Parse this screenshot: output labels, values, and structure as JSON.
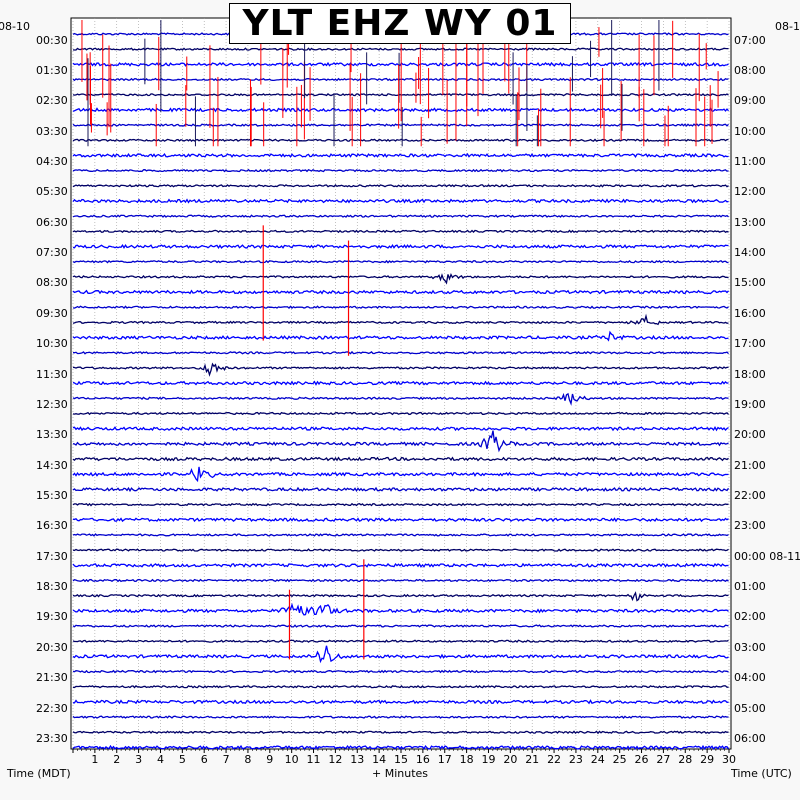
{
  "header": {
    "title": "YLT EHZ WY 01",
    "left_date": "08-10",
    "right_date": "08-1"
  },
  "footer": {
    "left_axis": "Time (MDT)",
    "x_axis": "+ Minutes",
    "right_axis": "Time (UTC)"
  },
  "chart_data": {
    "type": "line",
    "title": "YLT EHZ WY 01",
    "xlabel": "+ Minutes",
    "xlim": [
      0,
      30
    ],
    "x_ticks": [
      "1",
      "2",
      "3",
      "4",
      "5",
      "6",
      "7",
      "8",
      "9",
      "10",
      "11",
      "12",
      "13",
      "14",
      "15",
      "16",
      "17",
      "18",
      "19",
      "20",
      "21",
      "22",
      "23",
      "24",
      "25",
      "26",
      "27",
      "28",
      "29",
      "30"
    ],
    "left_labels": [
      "00:30",
      "01:30",
      "02:30",
      "03:30",
      "04:30",
      "05:30",
      "06:30",
      "07:30",
      "08:30",
      "09:30",
      "10:30",
      "11:30",
      "12:30",
      "13:30",
      "14:30",
      "15:30",
      "16:30",
      "17:30",
      "18:30",
      "19:30",
      "20:30",
      "21:30",
      "22:30",
      "23:30"
    ],
    "right_labels": [
      "07:00",
      "08:00",
      "09:00",
      "10:00",
      "11:00",
      "12:00",
      "13:00",
      "14:00",
      "15:00",
      "16:00",
      "17:00",
      "18:00",
      "19:00",
      "20:00",
      "21:00",
      "22:00",
      "23:00",
      "00:00 08-11",
      "01:00",
      "02:00",
      "03:00",
      "04:00",
      "05:00",
      "06:00"
    ],
    "trace_count": 48,
    "trace_colors": [
      "#0000cc",
      "#000066",
      "#0000ff"
    ],
    "clip_color": "#ff0000",
    "events": [
      {
        "trace": 16,
        "minute": 17.1,
        "amplitude": 0.5
      },
      {
        "trace": 19,
        "minute": 26.2,
        "amplitude": 0.6
      },
      {
        "trace": 20,
        "minute": 24.5,
        "amplitude": 0.5
      },
      {
        "trace": 22,
        "minute": 6.3,
        "amplitude": 0.7
      },
      {
        "trace": 24,
        "minute": 22.8,
        "amplitude": 0.7
      },
      {
        "trace": 27,
        "minute": 19.2,
        "amplitude": 1.2
      },
      {
        "trace": 29,
        "minute": 5.8,
        "amplitude": 0.9
      },
      {
        "trace": 37,
        "minute": 25.8,
        "amplitude": 0.5
      },
      {
        "trace": 38,
        "minute": 10.3,
        "amplitude": 1.2
      },
      {
        "trace": 38,
        "minute": 11.5,
        "amplitude": 0.9
      },
      {
        "trace": 41,
        "minute": 11.6,
        "amplitude": 1.1
      }
    ],
    "clipped_spikes": [
      {
        "minute": 8.7,
        "from_trace": 13,
        "to_trace": 20
      },
      {
        "minute": 12.6,
        "from_trace": 14,
        "to_trace": 21
      },
      {
        "minute": 13.3,
        "from_trace": 35,
        "to_trace": 41
      },
      {
        "minute": 9.9,
        "from_trace": 37,
        "to_trace": 41
      }
    ],
    "clipped_band": {
      "from_trace": 0,
      "to_trace": 7
    }
  }
}
